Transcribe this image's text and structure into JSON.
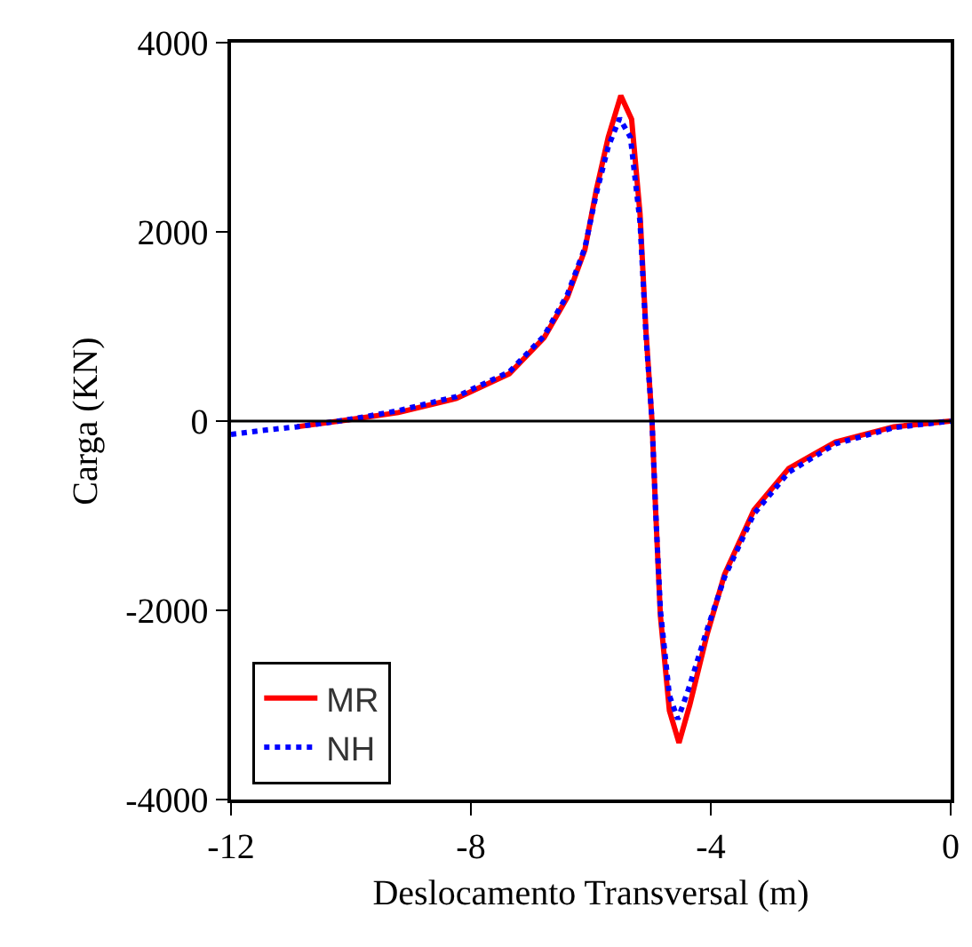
{
  "chart_data": {
    "type": "line",
    "xlabel": "Deslocamento Transversal (m)",
    "ylabel": "Carga (KN)",
    "xlim": [
      -12,
      0
    ],
    "xticks": [
      -12,
      -8,
      -4,
      0
    ],
    "ylim": [
      -4000,
      4000
    ],
    "yticks": [
      -4000,
      -2000,
      0,
      2000,
      4000
    ],
    "grid": false,
    "legend": "bottom left",
    "marker": "none",
    "ref_lines": [
      {
        "axis": "y",
        "value": 0,
        "color": "#000000"
      }
    ],
    "series": [
      {
        "name": "MR",
        "color": "#ff0000",
        "line_style": "solid",
        "x": [
          -10.9,
          -10.09,
          -9.21,
          -8.24,
          -7.36,
          -6.78,
          -6.39,
          -6.1,
          -5.91,
          -5.71,
          -5.5,
          -5.32,
          -5.18,
          -5.08,
          -4.98,
          -4.92,
          -4.84,
          -4.69,
          -4.53,
          -4.35,
          -4.06,
          -3.77,
          -3.28,
          -2.7,
          -1.92,
          -0.95,
          0
        ],
        "values": [
          -60,
          10,
          90,
          240,
          500,
          880,
          1310,
          1810,
          2440,
          3000,
          3440,
          3190,
          2190,
          940,
          0,
          -940,
          -2060,
          -3060,
          -3400,
          -3000,
          -2250,
          -1620,
          -940,
          -500,
          -220,
          -60,
          0
        ]
      },
      {
        "name": "NH",
        "color": "#0000ff",
        "line_style": "dotted",
        "x": [
          -12,
          -11.5,
          -10.9,
          -10.09,
          -9.21,
          -8.24,
          -7.36,
          -6.78,
          -6.39,
          -6.1,
          -5.91,
          -5.71,
          -5.52,
          -5.34,
          -5.18,
          -5.08,
          -4.98,
          -4.92,
          -4.84,
          -4.69,
          -4.55,
          -4.38,
          -4.06,
          -3.77,
          -3.28,
          -2.7,
          -1.92,
          -0.95,
          0
        ],
        "values": [
          -140,
          -100,
          -60,
          10,
          110,
          260,
          520,
          900,
          1340,
          1830,
          2400,
          2900,
          3200,
          3000,
          2100,
          900,
          0,
          -940,
          -2000,
          -2900,
          -3150,
          -2850,
          -2200,
          -1650,
          -980,
          -540,
          -240,
          -70,
          0
        ]
      }
    ]
  }
}
